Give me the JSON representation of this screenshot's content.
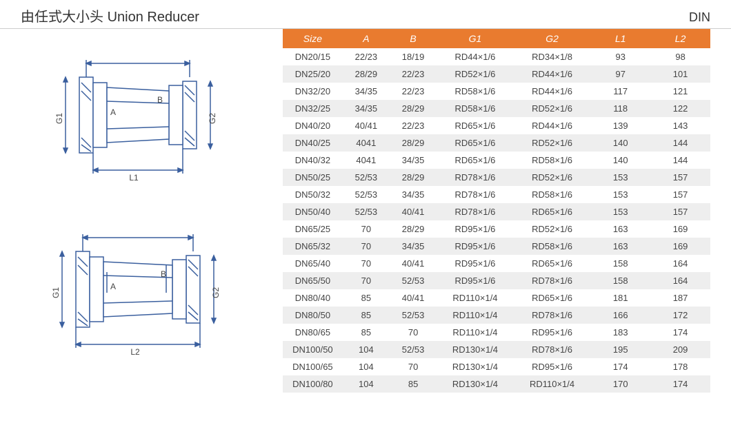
{
  "header": {
    "title_cn": "由任式大小头",
    "title_en": "Union Reducer",
    "std": "DIN"
  },
  "table": {
    "columns": [
      "Size",
      "A",
      "B",
      "G1",
      "G2",
      "L1",
      "L2"
    ],
    "rows": [
      [
        "DN20/15",
        "22/23",
        "18/19",
        "RD44×1/6",
        "RD34×1/8",
        "93",
        "98"
      ],
      [
        "DN25/20",
        "28/29",
        "22/23",
        "RD52×1/6",
        "RD44×1/6",
        "97",
        "101"
      ],
      [
        "DN32/20",
        "34/35",
        "22/23",
        "RD58×1/6",
        "RD44×1/6",
        "117",
        "121"
      ],
      [
        "DN32/25",
        "34/35",
        "28/29",
        "RD58×1/6",
        "RD52×1/6",
        "118",
        "122"
      ],
      [
        "DN40/20",
        "40/41",
        "22/23",
        "RD65×1/6",
        "RD44×1/6",
        "139",
        "143"
      ],
      [
        "DN40/25",
        "4041",
        "28/29",
        "RD65×1/6",
        "RD52×1/6",
        "140",
        "144"
      ],
      [
        "DN40/32",
        "4041",
        "34/35",
        "RD65×1/6",
        "RD58×1/6",
        "140",
        "144"
      ],
      [
        "DN50/25",
        "52/53",
        "28/29",
        "RD78×1/6",
        "RD52×1/6",
        "153",
        "157"
      ],
      [
        "DN50/32",
        "52/53",
        "34/35",
        "RD78×1/6",
        "RD58×1/6",
        "153",
        "157"
      ],
      [
        "DN50/40",
        "52/53",
        "40/41",
        "RD78×1/6",
        "RD65×1/6",
        "153",
        "157"
      ],
      [
        "DN65/25",
        "70",
        "28/29",
        "RD95×1/6",
        "RD52×1/6",
        "163",
        "169"
      ],
      [
        "DN65/32",
        "70",
        "34/35",
        "RD95×1/6",
        "RD58×1/6",
        "163",
        "169"
      ],
      [
        "DN65/40",
        "70",
        "40/41",
        "RD95×1/6",
        "RD65×1/6",
        "158",
        "164"
      ],
      [
        "DN65/50",
        "70",
        "52/53",
        "RD95×1/6",
        "RD78×1/6",
        "158",
        "164"
      ],
      [
        "DN80/40",
        "85",
        "40/41",
        "RD110×1/4",
        "RD65×1/6",
        "181",
        "187"
      ],
      [
        "DN80/50",
        "85",
        "52/53",
        "RD110×1/4",
        "RD78×1/6",
        "166",
        "172"
      ],
      [
        "DN80/65",
        "85",
        "70",
        "RD110×1/4",
        "RD95×1/6",
        "183",
        "174"
      ],
      [
        "DN100/50",
        "104",
        "52/53",
        "RD130×1/4",
        "RD78×1/6",
        "195",
        "209"
      ],
      [
        "DN100/65",
        "104",
        "70",
        "RD130×1/4",
        "RD95×1/6",
        "174",
        "178"
      ],
      [
        "DN100/80",
        "104",
        "85",
        "RD130×1/4",
        "RD110×1/4",
        "170",
        "174"
      ]
    ]
  },
  "diagram": {
    "stroke": "#3a5f9e",
    "stroke_width": 1.5,
    "fill": "#ffffff",
    "hatch": "#3a5f9e",
    "labels": {
      "g1": "G1",
      "g2": "G2",
      "a": "A",
      "b": "B",
      "l1": "L1",
      "l2": "L2"
    },
    "label_fontsize": 12,
    "label_color": "#454545"
  },
  "style": {
    "header_bg": "#e97b2f",
    "header_fg": "#ffffff",
    "stripe_bg": "#eeeeee",
    "text_color": "#454545",
    "rule_color": "#cccccc"
  }
}
